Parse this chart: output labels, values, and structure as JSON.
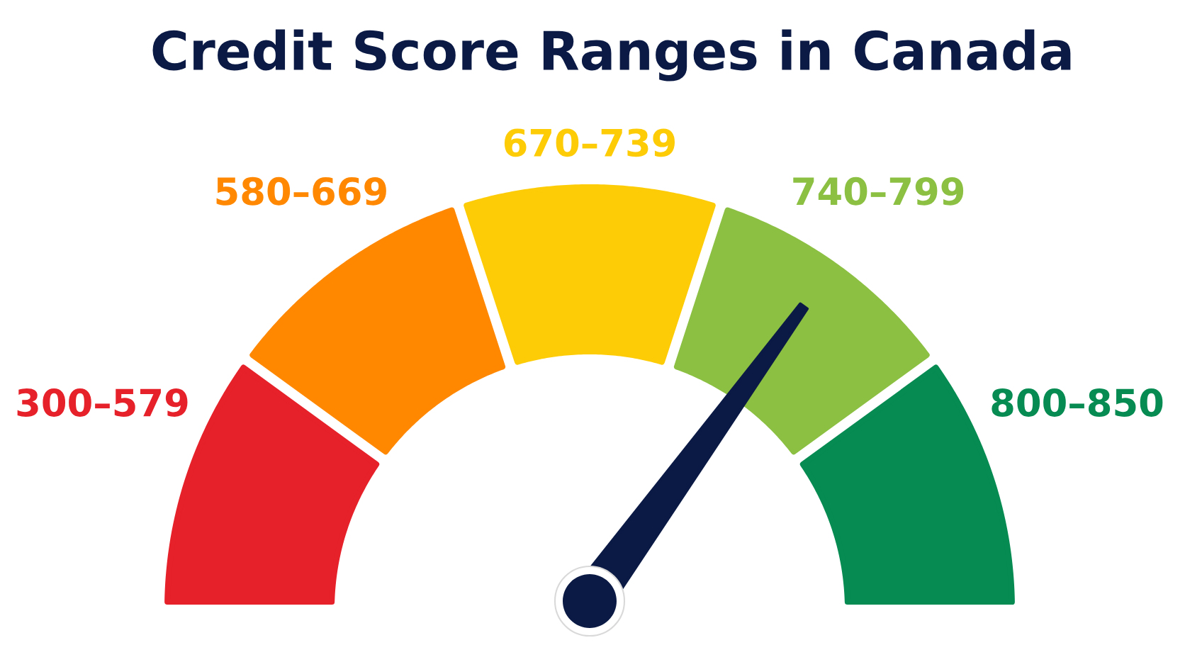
{
  "chart_data": {
    "type": "donut",
    "title": "Credit Score Ranges in Canada",
    "categories": [
      "300–579",
      "580–669",
      "670–739",
      "740–799",
      "800–850"
    ],
    "values": [
      20,
      20,
      20,
      20,
      20
    ],
    "colors": [
      "#e62129",
      "#ff8800",
      "#fdcc07",
      "#8cc043",
      "#068b52"
    ],
    "needle": "740–799"
  }
}
